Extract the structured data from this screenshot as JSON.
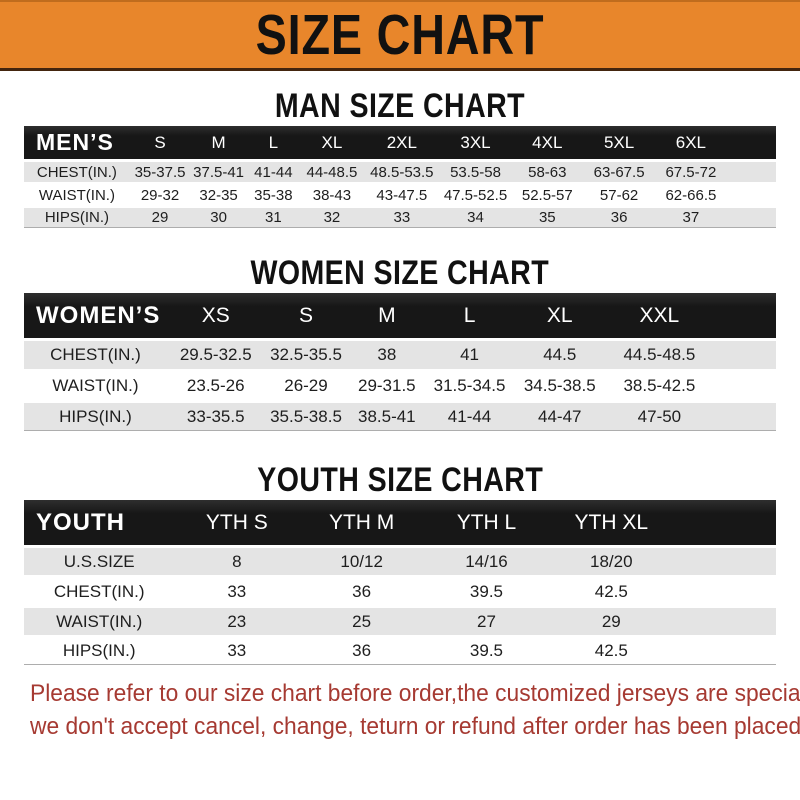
{
  "banner": {
    "title": "SIZE CHART"
  },
  "sections": {
    "man": {
      "title": "MAN SIZE CHART"
    },
    "women": {
      "title": "WOMEN SIZE CHART"
    },
    "youth": {
      "title": "YOUTH SIZE CHART"
    }
  },
  "tables": {
    "men": {
      "corner_label": "MEN’S",
      "columns": [
        "S",
        "M",
        "L",
        "XL",
        "2XL",
        "3XL",
        "4XL",
        "5XL",
        "6XL"
      ],
      "rows": [
        {
          "label": "CHEST(IN.)",
          "values": [
            "35-37.5",
            "37.5-41",
            "41-44",
            "44-48.5",
            "48.5-53.5",
            "53.5-58",
            "58-63",
            "63-67.5",
            "67.5-72"
          ]
        },
        {
          "label": "WAIST(IN.)",
          "values": [
            "29-32",
            "32-35",
            "35-38",
            "38-43",
            "43-47.5",
            "47.5-52.5",
            "52.5-57",
            "57-62",
            "62-66.5"
          ]
        },
        {
          "label": "HIPS(IN.)",
          "values": [
            "29",
            "30",
            "31",
            "32",
            "33",
            "34",
            "35",
            "36",
            "37"
          ]
        }
      ]
    },
    "women": {
      "corner_label": "WOMEN’S",
      "columns": [
        "XS",
        "S",
        "M",
        "L",
        "XL",
        "XXL"
      ],
      "rows": [
        {
          "label": "CHEST(IN.)",
          "values": [
            "29.5-32.5",
            "32.5-35.5",
            "38",
            "41",
            "44.5",
            "44.5-48.5"
          ]
        },
        {
          "label": "WAIST(IN.)",
          "values": [
            "23.5-26",
            "26-29",
            "29-31.5",
            "31.5-34.5",
            "34.5-38.5",
            "38.5-42.5"
          ]
        },
        {
          "label": "HIPS(IN.)",
          "values": [
            "33-35.5",
            "35.5-38.5",
            "38.5-41",
            "41-44",
            "44-47",
            "47-50"
          ]
        }
      ]
    },
    "youth": {
      "corner_label": "YOUTH",
      "columns": [
        "YTH S",
        "YTH M",
        "YTH L",
        "YTH XL"
      ],
      "rows": [
        {
          "label": "U.S.SIZE",
          "values": [
            "8",
            "10/12",
            "14/16",
            "18/20"
          ]
        },
        {
          "label": "CHEST(IN.)",
          "values": [
            "33",
            "36",
            "39.5",
            "42.5"
          ]
        },
        {
          "label": "WAIST(IN.)",
          "values": [
            "23",
            "25",
            "27",
            "29"
          ]
        },
        {
          "label": "HIPS(IN.)",
          "values": [
            "33",
            "36",
            "39.5",
            "42.5"
          ]
        }
      ]
    }
  },
  "footer": {
    "line1": "Please refer to our size chart before order,the customized jerseys are special products,",
    "line2": "we don't accept cancel, change, teturn or refund after order has been placed!"
  },
  "colors": {
    "banner-orange": "#E8862B",
    "banner-border": "#43250E",
    "header-black": "#171717",
    "row-gray": "#E4E4E4",
    "row-white": "#FFFFFF",
    "footer-red": "#A63A32",
    "title-black": "#111111"
  }
}
